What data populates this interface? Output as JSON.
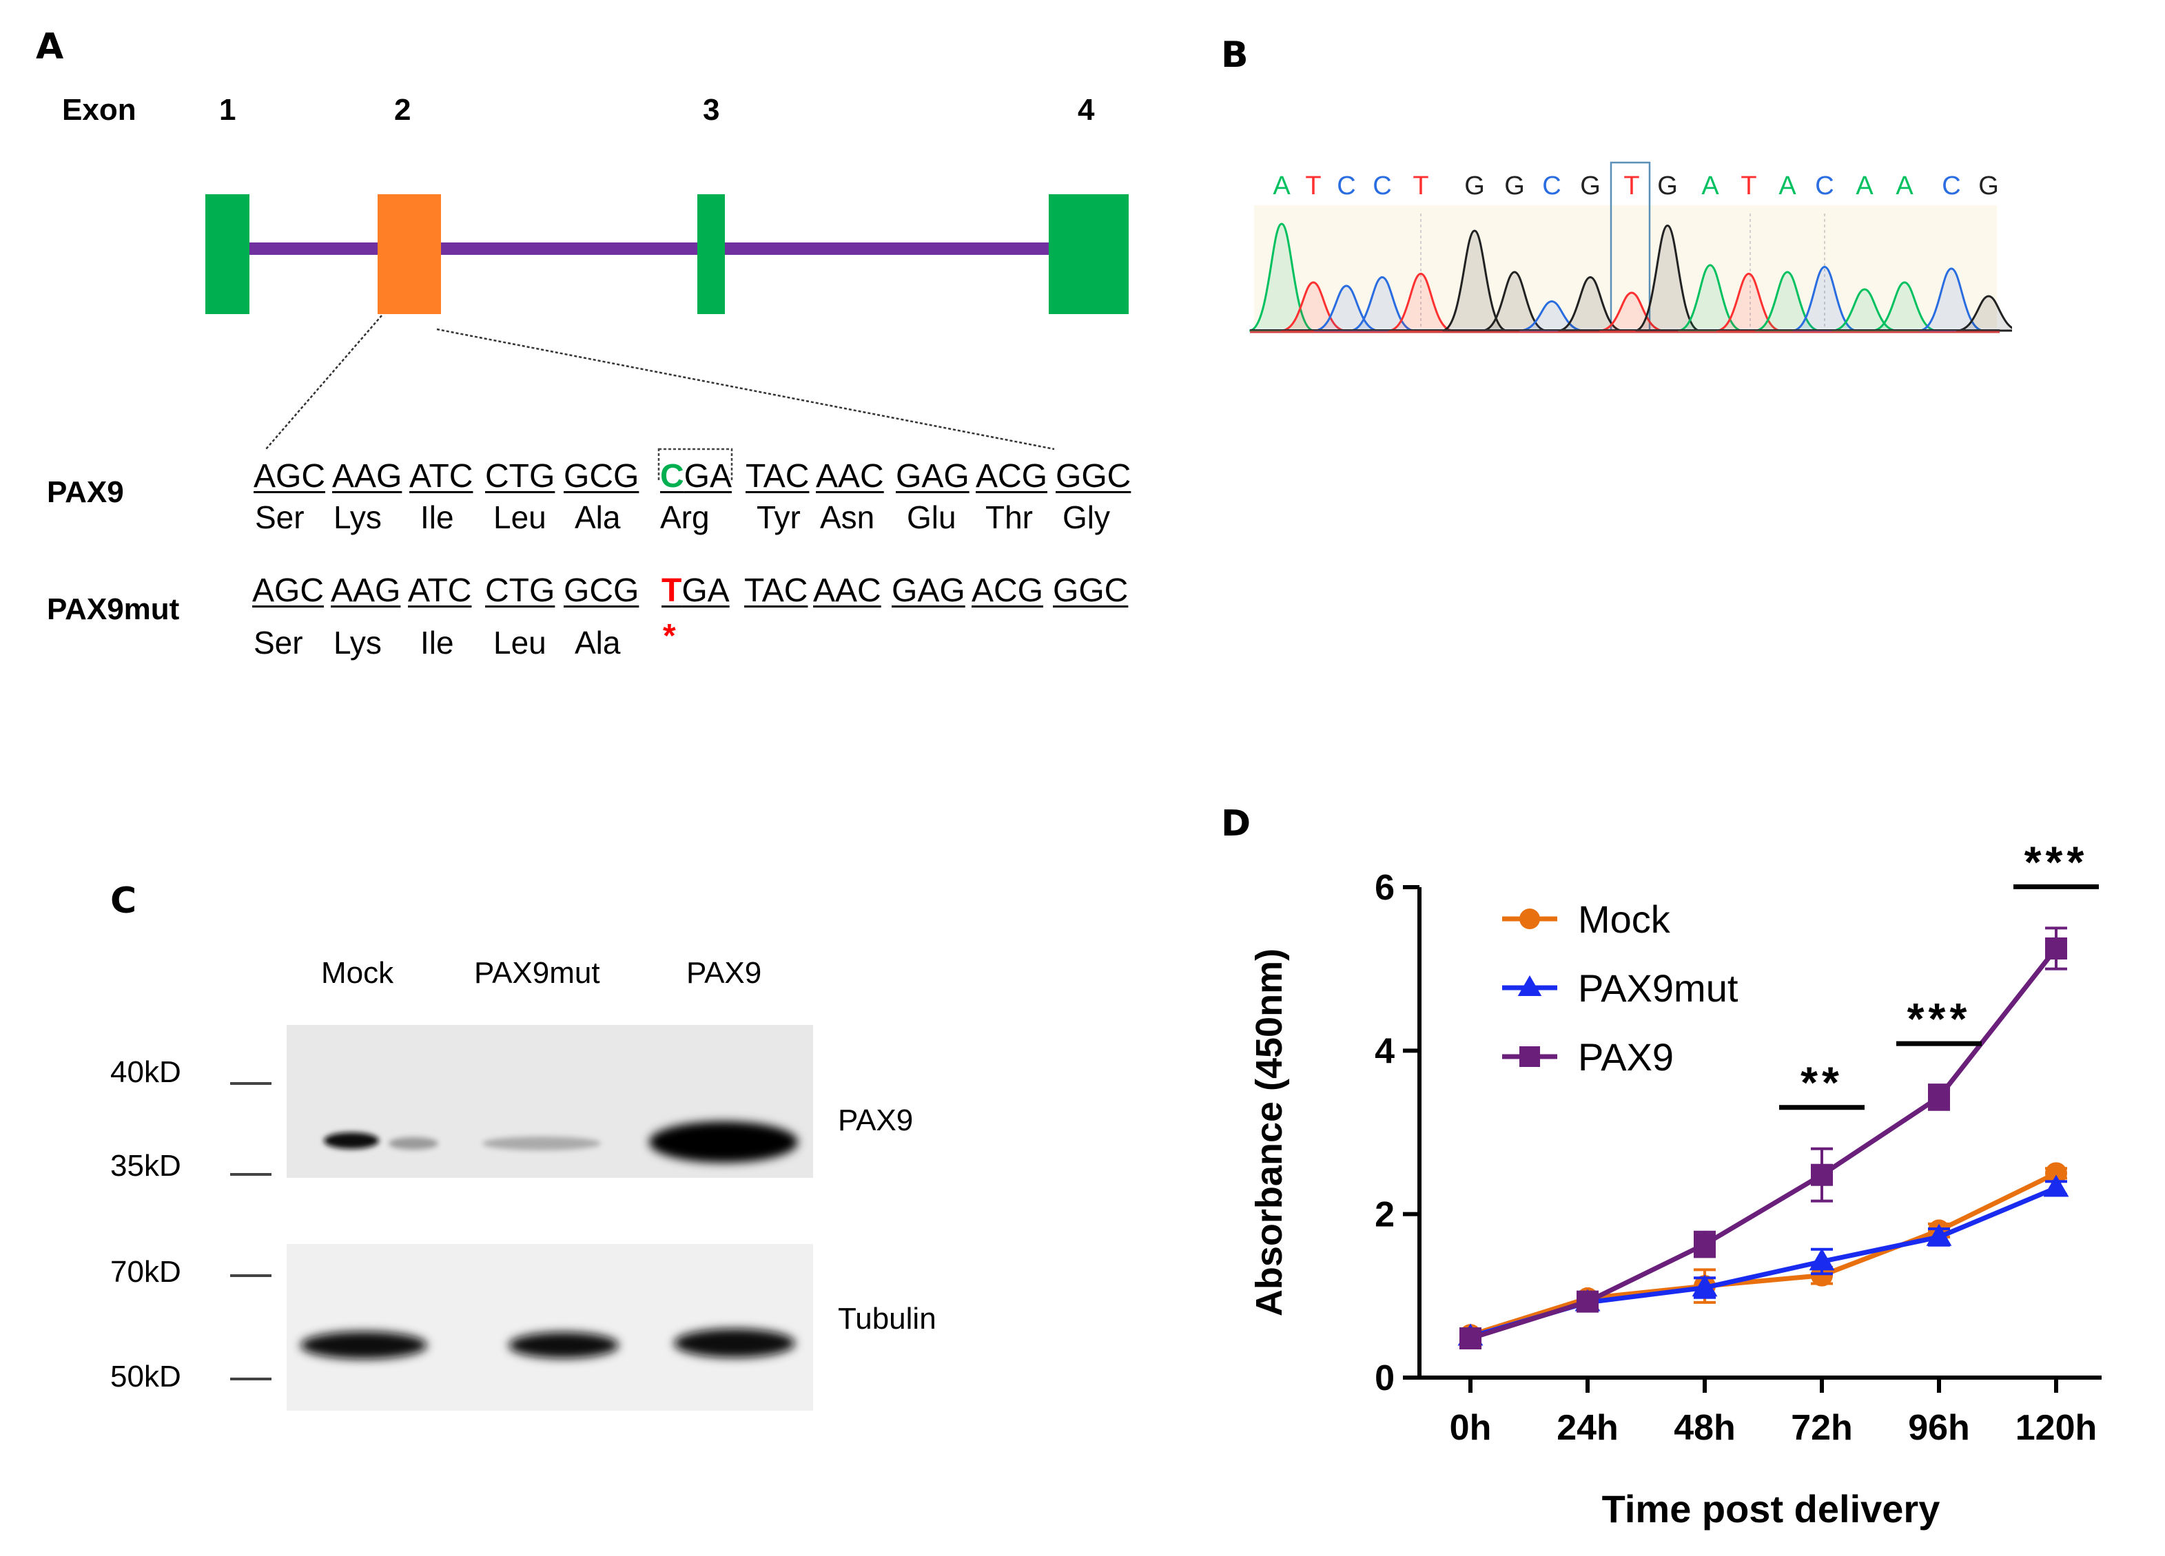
{
  "panels": {
    "a": "A",
    "b": "B",
    "c": "C",
    "d": "D"
  },
  "exon": {
    "label": "Exon",
    "numbers": [
      "1",
      "2",
      "3",
      "4"
    ],
    "colors": {
      "exon": "#00b050",
      "highlight": "#ff7f27",
      "intron": "#7030a0"
    }
  },
  "sequence": {
    "wt": {
      "label": "PAX9",
      "codons": [
        "AGC",
        "AAG",
        "ATC",
        "CTG",
        "GCG",
        "CGA",
        "TAC",
        "AAC",
        "GAG",
        "ACG",
        "GGC"
      ],
      "mutated_base": "C",
      "mutated_rest": "GA",
      "amino_acids": [
        "Ser",
        "Lys",
        "Ile",
        "Leu",
        "Ala",
        "Arg",
        "Tyr",
        "Asn",
        "Glu",
        "Thr",
        "Gly"
      ]
    },
    "mut": {
      "label": "PAX9mut",
      "codons": [
        "AGC",
        "AAG",
        "ATC",
        "CTG",
        "GCG",
        "TGA",
        "TAC",
        "AAC",
        "GAG",
        "ACG",
        "GGC"
      ],
      "mutated_base": "T",
      "mutated_rest": "GA",
      "amino_acids": [
        "Ser",
        "Lys",
        "Ile",
        "Leu",
        "Ala"
      ],
      "stop": "*"
    },
    "colors": {
      "wt_base": "#00b050",
      "mut_base": "#ff0000"
    }
  },
  "chromatogram": {
    "bases": [
      "A",
      "T",
      "C",
      "C",
      "T",
      "G",
      "G",
      "C",
      "G",
      "T",
      "G",
      "A",
      "T",
      "A",
      "C",
      "A",
      "A",
      "C",
      "G"
    ],
    "base_colors": {
      "A": "#00c060",
      "T": "#ff3030",
      "C": "#2a6de0",
      "G": "#222222"
    }
  },
  "western": {
    "lanes": [
      "Mock",
      "PAX9mut",
      "PAX9"
    ],
    "top_markers": [
      "40kD",
      "35kD"
    ],
    "bottom_markers": [
      "70kD",
      "50kD"
    ],
    "top_protein": "PAX9",
    "bottom_protein": "Tubulin"
  },
  "chart_data": {
    "type": "line",
    "title": "",
    "xlabel": "Time post delivery",
    "ylabel": "Absorbance (450nm)",
    "x": [
      "0h",
      "24h",
      "48h",
      "72h",
      "96h",
      "120h"
    ],
    "ylim": [
      0,
      6
    ],
    "yticks": [
      "0",
      "2",
      "4",
      "6"
    ],
    "legend_position": "top-left",
    "series": [
      {
        "name": "Mock",
        "color": "#e8700f",
        "marker": "circle",
        "values": [
          0.52,
          0.97,
          1.12,
          1.25,
          1.8,
          2.5
        ],
        "errors": [
          0.05,
          0.06,
          0.2,
          0.1,
          0.08,
          0.06
        ]
      },
      {
        "name": "PAX9mut",
        "color": "#1a2bf0",
        "marker": "triangle",
        "values": [
          0.5,
          0.92,
          1.1,
          1.42,
          1.72,
          2.32
        ],
        "errors": [
          0.05,
          0.05,
          0.12,
          0.15,
          0.1,
          0.08
        ]
      },
      {
        "name": "PAX9",
        "color": "#6a1f7a",
        "marker": "square",
        "values": [
          0.48,
          0.93,
          1.63,
          2.48,
          3.43,
          5.25
        ],
        "errors": [
          0.05,
          0.05,
          0.15,
          0.32,
          0.15,
          0.25
        ]
      }
    ],
    "significance": [
      {
        "x": "72h",
        "label": "**"
      },
      {
        "x": "96h",
        "label": "***"
      },
      {
        "x": "120h",
        "label": "***"
      }
    ]
  }
}
